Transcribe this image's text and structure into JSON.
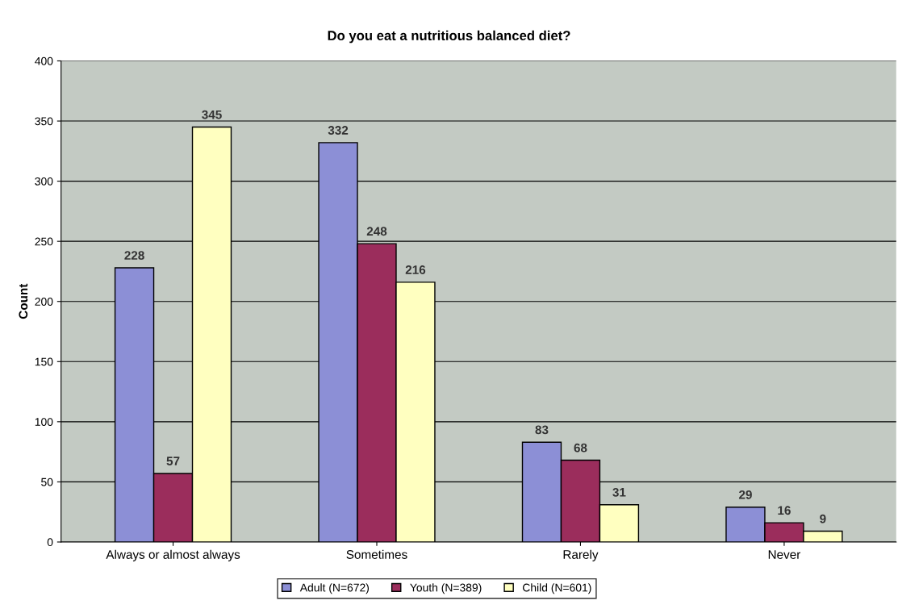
{
  "chart_data": {
    "type": "bar",
    "title": "Do you eat a nutritious balanced diet?",
    "ylabel": "Count",
    "categories": [
      "Always or almost always",
      "Sometimes",
      "Rarely",
      "Never"
    ],
    "series": [
      {
        "name": "Adult (N=672)",
        "color": "#8c8fd6",
        "values": [
          228,
          332,
          83,
          29
        ]
      },
      {
        "name": "Youth (N=389)",
        "color": "#9b2d5c",
        "values": [
          57,
          248,
          68,
          16
        ]
      },
      {
        "name": "Child (N=601)",
        "color": "#ffffc0",
        "values": [
          345,
          216,
          31,
          9
        ]
      }
    ],
    "ylim": [
      0,
      400
    ],
    "yticks": [
      0,
      50,
      100,
      150,
      200,
      250,
      300,
      350,
      400
    ],
    "grid": "y",
    "legend": "bottom",
    "data_labels": true
  }
}
